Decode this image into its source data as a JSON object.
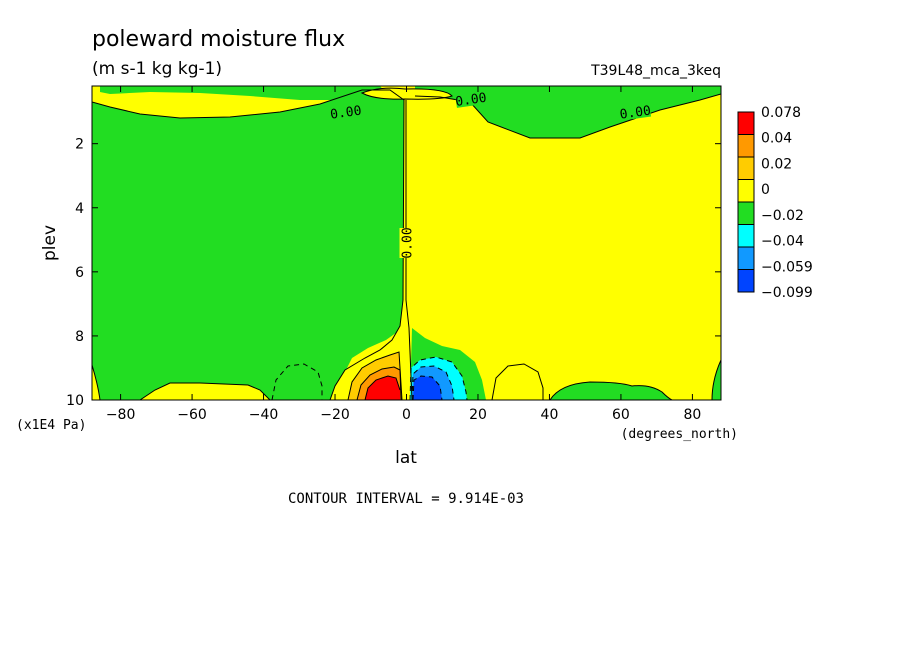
{
  "header": {
    "title": "poleward moisture flux",
    "units": "(m s-1 kg kg-1)",
    "run_id": "T39L48_mca_3keq"
  },
  "footer": {
    "contour_interval": "CONTOUR INTERVAL = 9.914E-03"
  },
  "chart_data": {
    "type": "heatmap",
    "title": "poleward moisture flux",
    "subtitle": "(m s-1 kg kg-1)",
    "xlabel": "lat",
    "xunits": "(degrees_north)",
    "ylabel": "plev",
    "yunits": "(x1E4 Pa)",
    "xlim": [
      -88,
      88
    ],
    "ylim": [
      10,
      0.2
    ],
    "y_inverted": true,
    "grid": false,
    "x_ticks": [
      -80,
      -60,
      -40,
      -20,
      0,
      20,
      40,
      60,
      80
    ],
    "y_ticks": [
      2,
      4,
      6,
      8,
      10
    ],
    "contour_interval": 0.009914,
    "contour_labels": [
      {
        "text": "0.00",
        "lat": -17,
        "plev": 1.0
      },
      {
        "text": "0.00",
        "lat": 18,
        "plev": 0.6
      },
      {
        "text": "0.00",
        "lat": 64,
        "plev": 1.0
      },
      {
        "text": "0.00",
        "lat": 0,
        "plev": 5.1
      }
    ],
    "colorbar": {
      "labels": [
        "0.078",
        "0.04",
        "0.02",
        "0",
        "−0.02",
        "−0.04",
        "−0.059",
        "−0.099"
      ],
      "colors": [
        "#ff0000",
        "#ff9900",
        "#ffcc00",
        "#ffff00",
        "#22dd22",
        "#00ffff",
        "#1199ff",
        "#0044ff"
      ]
    },
    "features": [
      {
        "sign": "positive",
        "peak": 0.078,
        "lat": -5,
        "plev": 9.7
      },
      {
        "sign": "negative",
        "peak": -0.099,
        "lat": 7,
        "plev": 9.7
      }
    ]
  }
}
